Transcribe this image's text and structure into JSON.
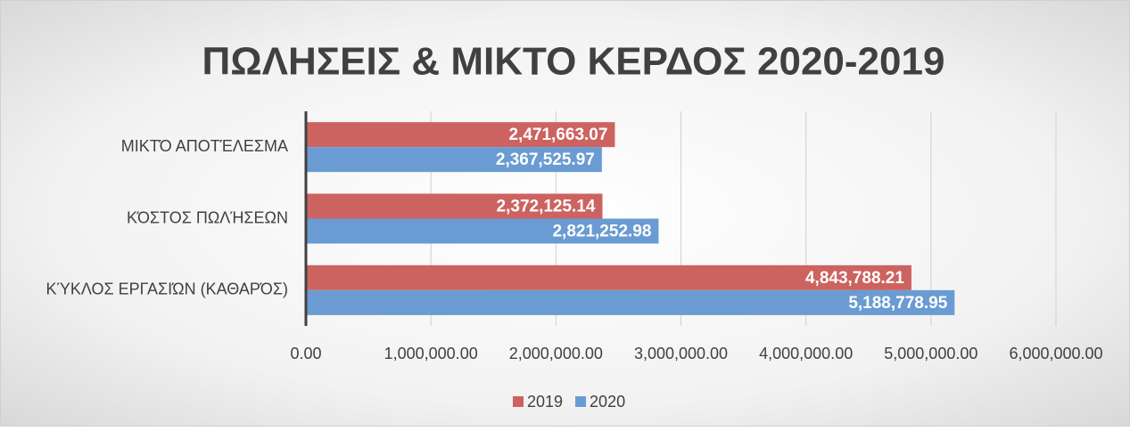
{
  "chart_data": {
    "type": "hbar",
    "title": "ΠΩΛΗΣΕΙΣ & ΜΙΚΤΟ ΚΕΡΔΟΣ 2020-2019",
    "categories": [
      "ΜΙΚΤΌ ΑΠΟΤΈΛΕΣΜΑ",
      "ΚΌΣΤΟΣ ΠΩΛΉΣΕΩΝ",
      "ΚΎΚΛΟΣ ΕΡΓΑΣΙΏΝ (ΚΑΘΑΡΌΣ)"
    ],
    "series": [
      {
        "name": "2019",
        "color": "#cc6360",
        "values": [
          2471663.07,
          2372125.14,
          4843788.21
        ],
        "value_labels": [
          "2,471,663.07",
          "2,372,125.14",
          "4,843,788.21"
        ]
      },
      {
        "name": "2020",
        "color": "#6a9bd2",
        "values": [
          2367525.97,
          2821252.98,
          5188778.95
        ],
        "value_labels": [
          "2,367,525.97",
          "2,821,252.98",
          "5,188,778.95"
        ]
      }
    ],
    "xlim": [
      0,
      6000000
    ],
    "xticks": [
      {
        "value": 0,
        "label": "0.00"
      },
      {
        "value": 1000000,
        "label": "1,000,000.00"
      },
      {
        "value": 2000000,
        "label": "2,000,000.00"
      },
      {
        "value": 3000000,
        "label": "3,000,000.00"
      },
      {
        "value": 4000000,
        "label": "4,000,000.00"
      },
      {
        "value": 5000000,
        "label": "5,000,000.00"
      },
      {
        "value": 6000000,
        "label": "6,000,000.00"
      }
    ],
    "grid": true,
    "legend": "bottom"
  }
}
